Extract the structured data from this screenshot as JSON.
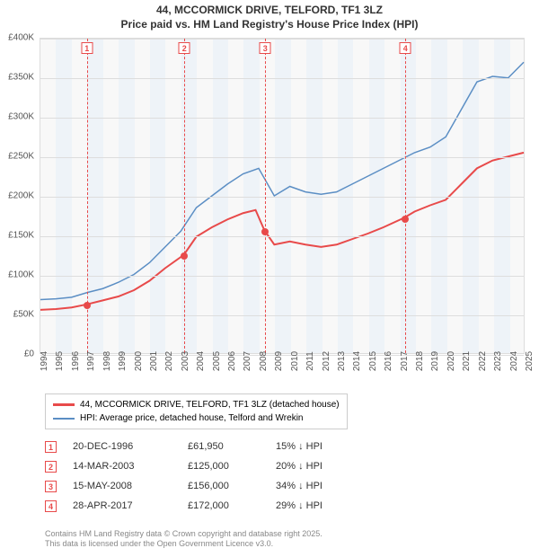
{
  "title_line1": "44, MCCORMICK DRIVE, TELFORD, TF1 3LZ",
  "title_line2": "Price paid vs. HM Land Registry's House Price Index (HPI)",
  "chart": {
    "type": "line",
    "background_color": "#f8f8f8",
    "altband_color": "#eef3f8",
    "grid_color": "#dddddd",
    "x_min_year": 1994,
    "x_max_year": 2025,
    "x_years": [
      1994,
      1995,
      1996,
      1997,
      1998,
      1999,
      2000,
      2001,
      2002,
      2003,
      2004,
      2005,
      2006,
      2007,
      2008,
      2009,
      2010,
      2011,
      2012,
      2013,
      2014,
      2015,
      2016,
      2017,
      2018,
      2019,
      2020,
      2021,
      2022,
      2023,
      2024,
      2025
    ],
    "y_min": 0,
    "y_max": 400000,
    "y_tick_step": 50000,
    "y_labels": [
      "£0",
      "£50K",
      "£100K",
      "£150K",
      "£200K",
      "£250K",
      "£300K",
      "£350K",
      "£400K"
    ],
    "series": [
      {
        "name": "price_paid",
        "label": "44, MCCORMICK DRIVE, TELFORD, TF1 3LZ (detached house)",
        "color": "#e84a4a",
        "width": 2,
        "points": [
          [
            1994,
            55000
          ],
          [
            1995,
            56000
          ],
          [
            1996,
            58000
          ],
          [
            1996.97,
            61950
          ],
          [
            1998,
            67000
          ],
          [
            1999,
            72000
          ],
          [
            2000,
            80000
          ],
          [
            2001,
            92000
          ],
          [
            2002,
            108000
          ],
          [
            2003.2,
            125000
          ],
          [
            2004,
            148000
          ],
          [
            2005,
            160000
          ],
          [
            2006,
            170000
          ],
          [
            2007,
            178000
          ],
          [
            2007.8,
            182000
          ],
          [
            2008.37,
            156000
          ],
          [
            2009,
            138000
          ],
          [
            2010,
            142000
          ],
          [
            2011,
            138000
          ],
          [
            2012,
            135000
          ],
          [
            2013,
            138000
          ],
          [
            2014,
            145000
          ],
          [
            2015,
            152000
          ],
          [
            2016,
            160000
          ],
          [
            2017.32,
            172000
          ],
          [
            2018,
            180000
          ],
          [
            2019,
            188000
          ],
          [
            2020,
            195000
          ],
          [
            2021,
            215000
          ],
          [
            2022,
            235000
          ],
          [
            2023,
            245000
          ],
          [
            2024,
            250000
          ],
          [
            2025,
            255000
          ]
        ]
      },
      {
        "name": "hpi",
        "label": "HPI: Average price, detached house, Telford and Wrekin",
        "color": "#5b8ec4",
        "width": 1.5,
        "points": [
          [
            1994,
            68000
          ],
          [
            1995,
            69000
          ],
          [
            1996,
            71000
          ],
          [
            1997,
            77000
          ],
          [
            1998,
            82000
          ],
          [
            1999,
            90000
          ],
          [
            2000,
            100000
          ],
          [
            2001,
            115000
          ],
          [
            2002,
            135000
          ],
          [
            2003,
            155000
          ],
          [
            2004,
            185000
          ],
          [
            2005,
            200000
          ],
          [
            2006,
            215000
          ],
          [
            2007,
            228000
          ],
          [
            2008,
            235000
          ],
          [
            2009,
            200000
          ],
          [
            2010,
            212000
          ],
          [
            2011,
            205000
          ],
          [
            2012,
            202000
          ],
          [
            2013,
            205000
          ],
          [
            2014,
            215000
          ],
          [
            2015,
            225000
          ],
          [
            2016,
            235000
          ],
          [
            2017,
            245000
          ],
          [
            2018,
            255000
          ],
          [
            2019,
            262000
          ],
          [
            2020,
            275000
          ],
          [
            2021,
            310000
          ],
          [
            2022,
            345000
          ],
          [
            2023,
            352000
          ],
          [
            2024,
            350000
          ],
          [
            2025,
            370000
          ]
        ]
      }
    ],
    "events": [
      {
        "id": "1",
        "year": 1996.97,
        "price": 61950
      },
      {
        "id": "2",
        "year": 2003.2,
        "price": 125000
      },
      {
        "id": "3",
        "year": 2008.37,
        "price": 156000
      },
      {
        "id": "4",
        "year": 2017.32,
        "price": 172000
      }
    ]
  },
  "legend": {
    "series1_label": "44, MCCORMICK DRIVE, TELFORD, TF1 3LZ (detached house)",
    "series2_label": "HPI: Average price, detached house, Telford and Wrekin"
  },
  "sales": [
    {
      "id": "1",
      "date": "20-DEC-1996",
      "price": "£61,950",
      "diff": "15% ↓ HPI"
    },
    {
      "id": "2",
      "date": "14-MAR-2003",
      "price": "£125,000",
      "diff": "20% ↓ HPI"
    },
    {
      "id": "3",
      "date": "15-MAY-2008",
      "price": "£156,000",
      "diff": "34% ↓ HPI"
    },
    {
      "id": "4",
      "date": "28-APR-2017",
      "price": "£172,000",
      "diff": "29% ↓ HPI"
    }
  ],
  "footer_line1": "Contains HM Land Registry data © Crown copyright and database right 2025.",
  "footer_line2": "This data is licensed under the Open Government Licence v3.0.",
  "colors": {
    "price_paid": "#e84a4a",
    "hpi": "#5b8ec4"
  }
}
